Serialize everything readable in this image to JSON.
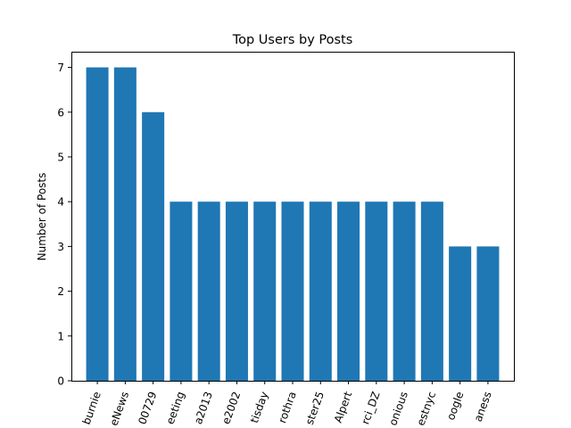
{
  "chart_data": {
    "type": "bar",
    "title": "Top Users by Posts",
    "xlabel": "",
    "ylabel": "Number of Posts",
    "categories": [
      "burnie",
      "eNews",
      "00729",
      "eeting",
      "a2013",
      "e2002",
      "tisday",
      "rothra",
      "ster25",
      "Alpert",
      "rci_DZ",
      "onious",
      "estnyc",
      "oogle",
      "aness"
    ],
    "values": [
      7,
      7,
      6,
      4,
      4,
      4,
      4,
      4,
      4,
      4,
      4,
      4,
      4,
      3,
      3
    ],
    "ylim": [
      0,
      7.35
    ],
    "yticks": [
      0,
      1,
      2,
      3,
      4,
      5,
      6,
      7
    ],
    "grid": false,
    "color": "#1f77b4",
    "xtick_rotation": 70
  }
}
